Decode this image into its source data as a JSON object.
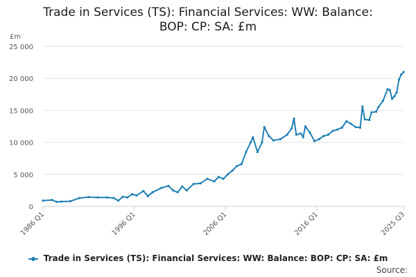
{
  "title": "Trade in Services (TS): Financial Services: WW: Balance: BOP: CP: SA: £m",
  "source_label": "Source:",
  "legend_label": "Trade in Services (TS): Financial Services: WW: Balance: BOP: CP: SA: £m",
  "colors": {
    "series": "#1f7fb4",
    "grid": "#e6e6e6"
  },
  "chart_data": {
    "type": "line",
    "title": "Trade in Services (TS): Financial Services: WW: Balance: BOP: CP: SA: £m",
    "ylabel": "£m",
    "ylim": [
      0,
      25000
    ],
    "y_ticks": [
      0,
      5000,
      10000,
      15000,
      20000,
      25000
    ],
    "y_tick_labels": [
      "0",
      "5 000",
      "10 000",
      "15 000",
      "20 000",
      "25 000"
    ],
    "x_range": [
      "1986 Q1",
      "2025 Q3"
    ],
    "x_ticks": [
      "1986 Q1",
      "1996 Q1",
      "2006 Q1",
      "2016 Q1",
      "2025 Q3"
    ],
    "grid": true,
    "legend_position": "bottom",
    "series": [
      {
        "name": "Trade in Services (TS): Financial Services: WW: Balance: BOP: CP: SA: £m",
        "points": [
          [
            "1986 Q1",
            900
          ],
          [
            "1987 Q1",
            1000
          ],
          [
            "1987 Q3",
            700
          ],
          [
            "1988 Q1",
            750
          ],
          [
            "1989 Q1",
            800
          ],
          [
            "1990 Q1",
            1300
          ],
          [
            "1991 Q1",
            1450
          ],
          [
            "1992 Q1",
            1400
          ],
          [
            "1993 Q1",
            1400
          ],
          [
            "1993 Q4",
            1300
          ],
          [
            "1994 Q2",
            900
          ],
          [
            "1994 Q4",
            1500
          ],
          [
            "1995 Q2",
            1400
          ],
          [
            "1995 Q4",
            1900
          ],
          [
            "1996 Q2",
            1700
          ],
          [
            "1997 Q1",
            2400
          ],
          [
            "1997 Q3",
            1600
          ],
          [
            "1998 Q1",
            2200
          ],
          [
            "1999 Q1",
            2900
          ],
          [
            "1999 Q4",
            3200
          ],
          [
            "2000 Q2",
            2500
          ],
          [
            "2000 Q4",
            2200
          ],
          [
            "2001 Q2",
            3100
          ],
          [
            "2001 Q4",
            2500
          ],
          [
            "2002 Q3",
            3500
          ],
          [
            "2003 Q2",
            3600
          ],
          [
            "2004 Q1",
            4300
          ],
          [
            "2004 Q4",
            3900
          ],
          [
            "2005 Q2",
            4600
          ],
          [
            "2005 Q4",
            4300
          ],
          [
            "2006 Q2",
            5000
          ],
          [
            "2006 Q4",
            5600
          ],
          [
            "2007 Q2",
            6300
          ],
          [
            "2007 Q4",
            6600
          ],
          [
            "2008 Q2",
            8500
          ],
          [
            "2008 Q4",
            10000
          ],
          [
            "2009 Q1",
            10800
          ],
          [
            "2009 Q3",
            8500
          ],
          [
            "2010 Q1",
            10000
          ],
          [
            "2010 Q2",
            12400
          ],
          [
            "2010 Q4",
            11000
          ],
          [
            "2011 Q2",
            10300
          ],
          [
            "2012 Q1",
            10500
          ],
          [
            "2012 Q4",
            11200
          ],
          [
            "2013 Q2",
            12200
          ],
          [
            "2013 Q3",
            13700
          ],
          [
            "2013 Q4",
            11200
          ],
          [
            "2014 Q2",
            11400
          ],
          [
            "2014 Q3",
            10800
          ],
          [
            "2014 Q4",
            12500
          ],
          [
            "2015 Q2",
            11500
          ],
          [
            "2015 Q4",
            10200
          ],
          [
            "2016 Q2",
            10500
          ],
          [
            "2016 Q4",
            11000
          ],
          [
            "2017 Q2",
            11200
          ],
          [
            "2017 Q4",
            11800
          ],
          [
            "2018 Q2",
            12000
          ],
          [
            "2018 Q4",
            12300
          ],
          [
            "2019 Q2",
            13300
          ],
          [
            "2019 Q4",
            12900
          ],
          [
            "2020 Q2",
            12400
          ],
          [
            "2020 Q4",
            12300
          ],
          [
            "2021 Q1",
            15600
          ],
          [
            "2021 Q2",
            13600
          ],
          [
            "2021 Q4",
            13500
          ],
          [
            "2022 Q1",
            14700
          ],
          [
            "2022 Q3",
            14800
          ],
          [
            "2022 Q4",
            15500
          ],
          [
            "2023 Q2",
            16500
          ],
          [
            "2023 Q4",
            18300
          ],
          [
            "2024 Q1",
            18200
          ],
          [
            "2024 Q2",
            16800
          ],
          [
            "2024 Q3",
            17200
          ],
          [
            "2024 Q4",
            17800
          ],
          [
            "2025 Q1",
            19800
          ],
          [
            "2025 Q2",
            20600
          ],
          [
            "2025 Q3",
            21000
          ]
        ]
      }
    ]
  }
}
